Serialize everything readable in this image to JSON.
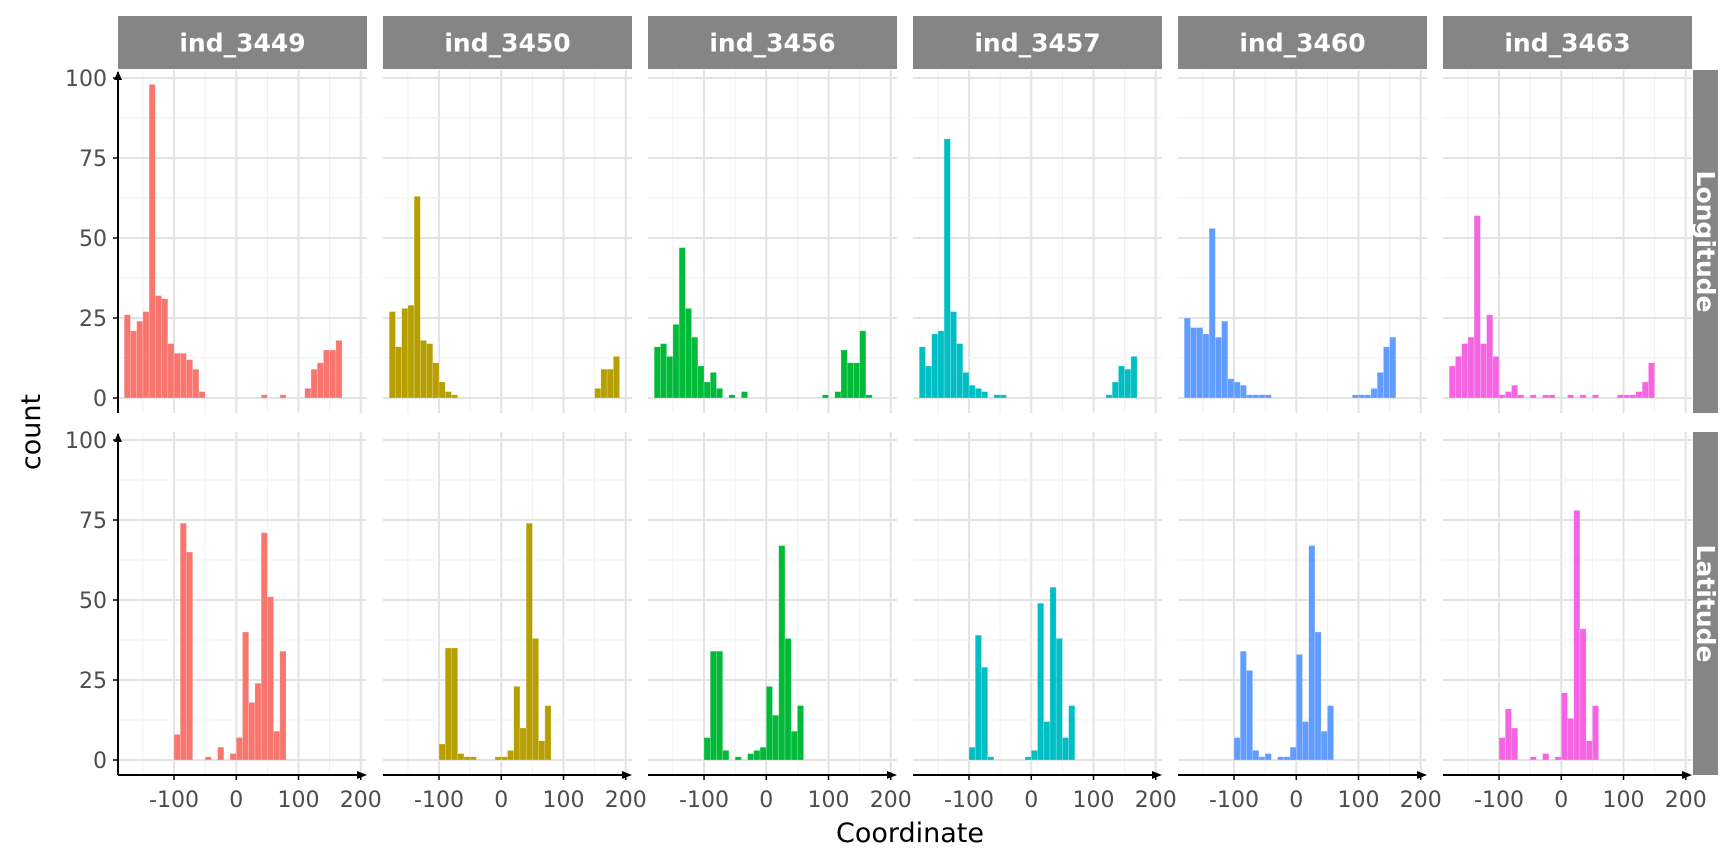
{
  "chart_data": {
    "type": "bar",
    "xlabel": "Coordinate",
    "ylabel": "count",
    "xlim": [
      -190,
      210
    ],
    "ylim": [
      0,
      100
    ],
    "xticks": [
      -100,
      0,
      100,
      200
    ],
    "xtick_labels": [
      "-100",
      "0",
      "100",
      "200"
    ],
    "yticks": [
      0,
      25,
      50,
      75,
      100
    ],
    "ytick_labels": [
      "0",
      "25",
      "50",
      "75",
      "100"
    ],
    "bin_width": 10,
    "grid": true,
    "columns": [
      {
        "name": "ind_3449",
        "color": "#F8766D"
      },
      {
        "name": "ind_3450",
        "color": "#B79F00"
      },
      {
        "name": "ind_3456",
        "color": "#00BA38"
      },
      {
        "name": "ind_3457",
        "color": "#00BFC4"
      },
      {
        "name": "ind_3460",
        "color": "#619CFF"
      },
      {
        "name": "ind_3463",
        "color": "#F564E3"
      }
    ],
    "rows": [
      "Longitude",
      "Latitude"
    ],
    "panels": [
      {
        "column": "ind_3449",
        "row": "Longitude",
        "bins": [
          [
            -175,
            26
          ],
          [
            -165,
            21
          ],
          [
            -155,
            24
          ],
          [
            -145,
            27
          ],
          [
            -135,
            98
          ],
          [
            -125,
            32
          ],
          [
            -115,
            31
          ],
          [
            -105,
            17
          ],
          [
            -95,
            14
          ],
          [
            -85,
            14
          ],
          [
            -75,
            12
          ],
          [
            -65,
            9
          ],
          [
            -55,
            2
          ],
          [
            -45,
            0
          ],
          [
            -35,
            0
          ],
          [
            -25,
            0
          ],
          [
            -15,
            0
          ],
          [
            -5,
            0
          ],
          [
            5,
            0
          ],
          [
            15,
            0
          ],
          [
            25,
            0
          ],
          [
            35,
            0
          ],
          [
            45,
            1
          ],
          [
            55,
            0
          ],
          [
            65,
            0
          ],
          [
            75,
            1
          ],
          [
            85,
            0
          ],
          [
            95,
            0
          ],
          [
            105,
            0
          ],
          [
            115,
            3
          ],
          [
            125,
            9
          ],
          [
            135,
            11
          ],
          [
            145,
            15
          ],
          [
            155,
            15
          ],
          [
            165,
            18
          ],
          [
            175,
            0
          ]
        ]
      },
      {
        "column": "ind_3450",
        "row": "Longitude",
        "bins": [
          [
            -175,
            27
          ],
          [
            -165,
            16
          ],
          [
            -155,
            28
          ],
          [
            -145,
            29
          ],
          [
            -135,
            63
          ],
          [
            -125,
            18
          ],
          [
            -115,
            17
          ],
          [
            -105,
            11
          ],
          [
            -95,
            5
          ],
          [
            -85,
            2
          ],
          [
            -75,
            1
          ],
          [
            -65,
            0
          ],
          [
            155,
            3
          ],
          [
            165,
            9
          ],
          [
            175,
            9
          ],
          [
            185,
            13
          ]
        ]
      },
      {
        "column": "ind_3456",
        "row": "Longitude",
        "bins": [
          [
            -175,
            16
          ],
          [
            -165,
            17
          ],
          [
            -155,
            13
          ],
          [
            -145,
            23
          ],
          [
            -135,
            47
          ],
          [
            -125,
            28
          ],
          [
            -115,
            19
          ],
          [
            -105,
            10
          ],
          [
            -95,
            5
          ],
          [
            -85,
            8
          ],
          [
            -75,
            3
          ],
          [
            -65,
            0
          ],
          [
            -55,
            1
          ],
          [
            -45,
            0
          ],
          [
            -35,
            2
          ],
          [
            95,
            1
          ],
          [
            115,
            2
          ],
          [
            125,
            15
          ],
          [
            135,
            11
          ],
          [
            145,
            11
          ],
          [
            155,
            21
          ],
          [
            165,
            1
          ]
        ]
      },
      {
        "column": "ind_3457",
        "row": "Longitude",
        "bins": [
          [
            -175,
            16
          ],
          [
            -165,
            10
          ],
          [
            -155,
            20
          ],
          [
            -145,
            21
          ],
          [
            -135,
            81
          ],
          [
            -125,
            27
          ],
          [
            -115,
            17
          ],
          [
            -105,
            8
          ],
          [
            -95,
            4
          ],
          [
            -85,
            3
          ],
          [
            -75,
            2
          ],
          [
            -55,
            1
          ],
          [
            -45,
            1
          ],
          [
            125,
            1
          ],
          [
            135,
            5
          ],
          [
            145,
            10
          ],
          [
            155,
            9
          ],
          [
            165,
            13
          ]
        ]
      },
      {
        "column": "ind_3460",
        "row": "Longitude",
        "bins": [
          [
            -175,
            25
          ],
          [
            -165,
            22
          ],
          [
            -155,
            22
          ],
          [
            -145,
            20
          ],
          [
            -135,
            53
          ],
          [
            -125,
            19
          ],
          [
            -115,
            24
          ],
          [
            -105,
            6
          ],
          [
            -95,
            5
          ],
          [
            -85,
            4
          ],
          [
            -75,
            1
          ],
          [
            -65,
            1
          ],
          [
            -55,
            1
          ],
          [
            -45,
            1
          ],
          [
            95,
            1
          ],
          [
            105,
            1
          ],
          [
            115,
            1
          ],
          [
            125,
            3
          ],
          [
            135,
            8
          ],
          [
            145,
            16
          ],
          [
            155,
            19
          ]
        ]
      },
      {
        "column": "ind_3463",
        "row": "Longitude",
        "bins": [
          [
            -175,
            10
          ],
          [
            -165,
            13
          ],
          [
            -155,
            17
          ],
          [
            -145,
            19
          ],
          [
            -135,
            57
          ],
          [
            -125,
            17
          ],
          [
            -115,
            26
          ],
          [
            -105,
            13
          ],
          [
            -95,
            1
          ],
          [
            -85,
            2
          ],
          [
            -75,
            4
          ],
          [
            -65,
            1
          ],
          [
            -55,
            0
          ],
          [
            -45,
            1
          ],
          [
            -25,
            1
          ],
          [
            -15,
            1
          ],
          [
            15,
            1
          ],
          [
            35,
            1
          ],
          [
            55,
            1
          ],
          [
            95,
            1
          ],
          [
            105,
            1
          ],
          [
            115,
            1
          ],
          [
            125,
            2
          ],
          [
            135,
            5
          ],
          [
            145,
            11
          ]
        ]
      },
      {
        "column": "ind_3449",
        "row": "Latitude",
        "bins": [
          [
            -95,
            8
          ],
          [
            -85,
            74
          ],
          [
            -75,
            65
          ],
          [
            -45,
            1
          ],
          [
            -25,
            4
          ],
          [
            -5,
            2
          ],
          [
            5,
            7
          ],
          [
            15,
            40
          ],
          [
            25,
            18
          ],
          [
            35,
            24
          ],
          [
            45,
            71
          ],
          [
            55,
            51
          ],
          [
            65,
            9
          ],
          [
            75,
            34
          ]
        ]
      },
      {
        "column": "ind_3450",
        "row": "Latitude",
        "bins": [
          [
            -95,
            5
          ],
          [
            -85,
            35
          ],
          [
            -75,
            35
          ],
          [
            -65,
            2
          ],
          [
            -55,
            1
          ],
          [
            -45,
            1
          ],
          [
            -5,
            1
          ],
          [
            5,
            1
          ],
          [
            15,
            3
          ],
          [
            25,
            23
          ],
          [
            35,
            10
          ],
          [
            45,
            74
          ],
          [
            55,
            38
          ],
          [
            65,
            6
          ],
          [
            75,
            17
          ]
        ]
      },
      {
        "column": "ind_3456",
        "row": "Latitude",
        "bins": [
          [
            -95,
            7
          ],
          [
            -85,
            34
          ],
          [
            -75,
            34
          ],
          [
            -65,
            3
          ],
          [
            -45,
            1
          ],
          [
            -25,
            2
          ],
          [
            -15,
            3
          ],
          [
            -5,
            4
          ],
          [
            5,
            23
          ],
          [
            15,
            14
          ],
          [
            25,
            67
          ],
          [
            35,
            38
          ],
          [
            45,
            9
          ],
          [
            55,
            17
          ]
        ]
      },
      {
        "column": "ind_3457",
        "row": "Latitude",
        "bins": [
          [
            -95,
            4
          ],
          [
            -85,
            39
          ],
          [
            -75,
            29
          ],
          [
            -65,
            1
          ],
          [
            -5,
            1
          ],
          [
            5,
            3
          ],
          [
            15,
            49
          ],
          [
            25,
            12
          ],
          [
            35,
            54
          ],
          [
            45,
            38
          ],
          [
            55,
            7
          ],
          [
            65,
            17
          ]
        ]
      },
      {
        "column": "ind_3460",
        "row": "Latitude",
        "bins": [
          [
            -95,
            7
          ],
          [
            -85,
            34
          ],
          [
            -75,
            28
          ],
          [
            -65,
            3
          ],
          [
            -55,
            1
          ],
          [
            -45,
            2
          ],
          [
            -25,
            1
          ],
          [
            -15,
            1
          ],
          [
            -5,
            4
          ],
          [
            5,
            33
          ],
          [
            15,
            12
          ],
          [
            25,
            67
          ],
          [
            35,
            40
          ],
          [
            45,
            9
          ],
          [
            55,
            17
          ]
        ]
      },
      {
        "column": "ind_3463",
        "row": "Latitude",
        "bins": [
          [
            -95,
            7
          ],
          [
            -85,
            16
          ],
          [
            -75,
            10
          ],
          [
            -45,
            1
          ],
          [
            -25,
            2
          ],
          [
            -5,
            1
          ],
          [
            5,
            21
          ],
          [
            15,
            13
          ],
          [
            25,
            78
          ],
          [
            35,
            41
          ],
          [
            45,
            6
          ],
          [
            55,
            17
          ]
        ]
      }
    ]
  }
}
